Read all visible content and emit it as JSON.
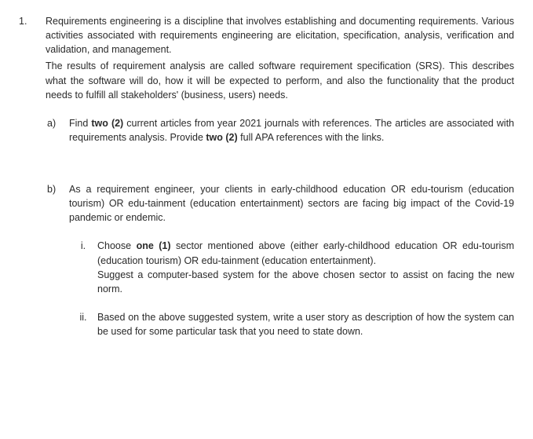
{
  "question": {
    "number": "1.",
    "intro_p1": "Requirements engineering is a discipline that involves establishing and documenting requirements. Various activities associated with requirements engineering are elicitation, specification, analysis, verification and validation, and management.",
    "intro_p2": "The results of requirement analysis are called software requirement specification (SRS). This describes what the software will do, how it will be expected to perform, and also the functionality that the product needs to fulfill all stakeholders' (business, users) needs."
  },
  "part_a": {
    "label": "a)",
    "t1": "Find ",
    "b1": "two (2)",
    "t2": " current articles from year 2021 journals with references. The articles are associated with requirements analysis. Provide ",
    "b2": "two (2)",
    "t3": " full APA references with the links."
  },
  "part_b": {
    "label": "b)",
    "text": "As a requirement engineer, your clients in early-childhood education OR edu-tourism (education tourism) OR edu-tainment (education entertainment) sectors are facing big impact of the Covid-19 pandemic or endemic."
  },
  "b_i": {
    "label": "i.",
    "t1": "Choose ",
    "b1": "one (1)",
    "t2": " sector mentioned above (either early-childhood education OR edu-tourism (education tourism) OR edu-tainment (education entertainment).",
    "t3": "Suggest a computer-based system for the above chosen sector to assist on facing the new norm."
  },
  "b_ii": {
    "label": "ii.",
    "text": "Based on the above suggested system, write a user story as description of how the system can be used for some particular task that you need to state down."
  }
}
